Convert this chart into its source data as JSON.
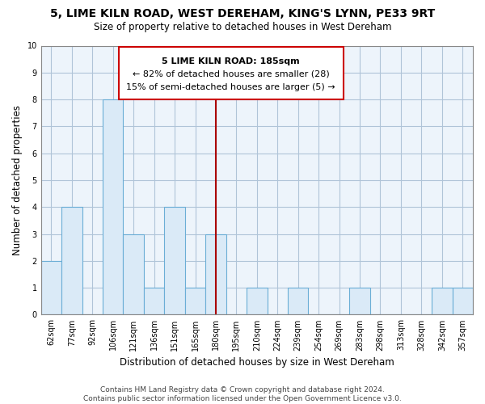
{
  "title": "5, LIME KILN ROAD, WEST DEREHAM, KING'S LYNN, PE33 9RT",
  "subtitle": "Size of property relative to detached houses in West Dereham",
  "xlabel": "Distribution of detached houses by size in West Dereham",
  "ylabel": "Number of detached properties",
  "categories": [
    "62sqm",
    "77sqm",
    "92sqm",
    "106sqm",
    "121sqm",
    "136sqm",
    "151sqm",
    "165sqm",
    "180sqm",
    "195sqm",
    "210sqm",
    "224sqm",
    "239sqm",
    "254sqm",
    "269sqm",
    "283sqm",
    "298sqm",
    "313sqm",
    "328sqm",
    "342sqm",
    "357sqm"
  ],
  "values": [
    2,
    4,
    0,
    8,
    3,
    1,
    4,
    1,
    3,
    0,
    1,
    0,
    1,
    0,
    0,
    1,
    0,
    0,
    0,
    1,
    1
  ],
  "bar_fill_color": "#daeaf7",
  "bar_edge_color": "#6baed6",
  "plot_bg_color": "#edf4fb",
  "reference_line_color": "#aa0000",
  "annotation_title": "5 LIME KILN ROAD: 185sqm",
  "annotation_line1": "← 82% of detached houses are smaller (28)",
  "annotation_line2": "15% of semi-detached houses are larger (5) →",
  "ylim": [
    0,
    10
  ],
  "yticks": [
    0,
    1,
    2,
    3,
    4,
    5,
    6,
    7,
    8,
    9,
    10
  ],
  "footer_line1": "Contains HM Land Registry data © Crown copyright and database right 2024.",
  "footer_line2": "Contains public sector information licensed under the Open Government Licence v3.0.",
  "background_color": "#ffffff",
  "grid_color": "#b0c4d8"
}
